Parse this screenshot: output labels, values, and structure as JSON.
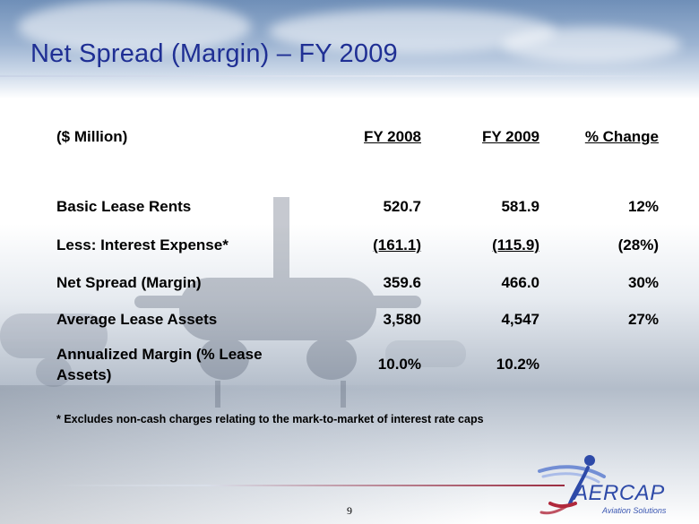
{
  "slide": {
    "title": "Net Spread (Margin) – FY 2009",
    "page_number": "9"
  },
  "table": {
    "headers": [
      "($ Million)",
      "FY 2008",
      "FY 2009",
      "% Change"
    ],
    "rows": [
      {
        "label": "Basic Lease Rents",
        "fy2008": "520.7",
        "fy2009": "581.9",
        "change": "12%"
      },
      {
        "label": "Less: Interest Expense*",
        "fy2008": "(161.1)",
        "fy2009": "(115.9)",
        "change": "(28%)"
      },
      {
        "label": "Net Spread (Margin)",
        "fy2008": "359.6",
        "fy2009": "466.0",
        "change": "30%"
      },
      {
        "label": "Average Lease Assets",
        "fy2008": "3,580",
        "fy2009": "4,547",
        "change": "27%"
      },
      {
        "label_line1": "Annualized Margin (% Lease",
        "label_line2": "Assets)",
        "fy2008": "10.0%",
        "fy2009": "10.2%",
        "change": ""
      }
    ],
    "footnote": "* Excludes non-cash charges relating to the mark-to-market of interest rate caps"
  },
  "logo": {
    "name": "AerCap",
    "wordmark": "AERCAP",
    "tagline": "Aviation Solutions",
    "colors": {
      "blue": "#2e4aa8",
      "red": "#b0283c"
    }
  },
  "colors": {
    "title": "#1f2f94"
  }
}
